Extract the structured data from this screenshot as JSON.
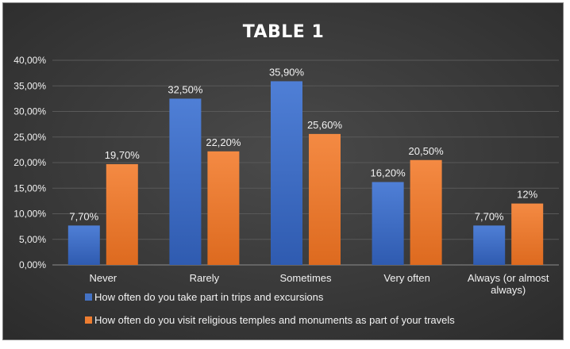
{
  "chart_data": {
    "type": "bar",
    "title": "TABLE 1",
    "categories": [
      [
        "Never"
      ],
      [
        "Rarely"
      ],
      [
        "Sometimes"
      ],
      [
        "Very often"
      ],
      [
        "Always (or almost",
        "always)"
      ]
    ],
    "series": [
      {
        "name": "How often do you take part in trips and excursions",
        "color": "#4472c4",
        "values": [
          7.7,
          32.5,
          35.9,
          16.2,
          7.7
        ],
        "labels": [
          "7,70%",
          "32,50%",
          "35,90%",
          "16,20%",
          "7,70%"
        ]
      },
      {
        "name": "How often do you visit religious temples and monuments as part of your travels",
        "color": "#ed7d31",
        "values": [
          19.7,
          22.2,
          25.6,
          20.5,
          12
        ],
        "labels": [
          "19,70%",
          "22,20%",
          "25,60%",
          "20,50%",
          "12%"
        ]
      }
    ],
    "ylim": [
      0,
      40
    ],
    "yticks": [
      0,
      5,
      10,
      15,
      20,
      25,
      30,
      35,
      40
    ],
    "ytick_labels": [
      "0,00%",
      "5,00%",
      "10,00%",
      "15,00%",
      "20,00%",
      "25,00%",
      "30,00%",
      "35,00%",
      "40,00%"
    ],
    "xlabel": "",
    "ylabel": "",
    "grid": true,
    "legend_position": "bottom-left",
    "background": "#404040"
  }
}
